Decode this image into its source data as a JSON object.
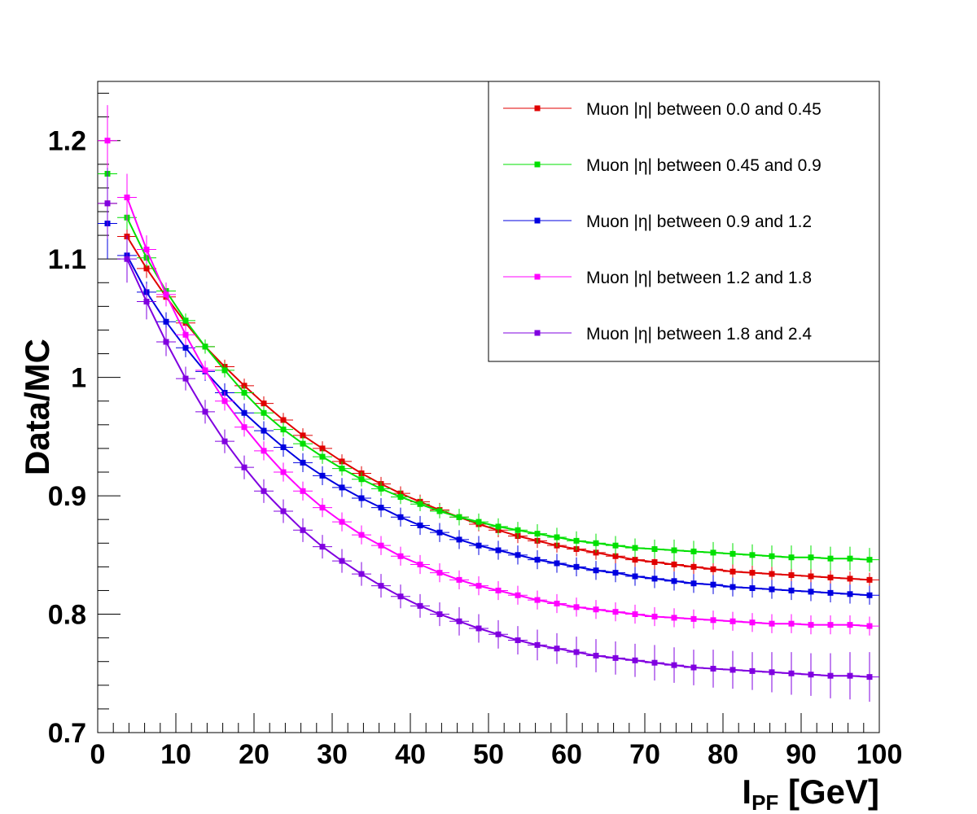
{
  "chart_data": {
    "type": "line",
    "title": "",
    "xlabel_main": "I",
    "xlabel_sub": "PF",
    "xlabel_unit": " [GeV]",
    "ylabel": "Data/MC",
    "xlim": [
      0,
      100
    ],
    "ylim": [
      0.7,
      1.25
    ],
    "x_ticks": [
      "0",
      "10",
      "20",
      "30",
      "40",
      "50",
      "60",
      "70",
      "80",
      "90",
      "100"
    ],
    "y_ticks": [
      "0.7",
      "0.8",
      "0.9",
      "1",
      "1.1",
      "1.2"
    ],
    "y_tick_values": [
      0.7,
      0.8,
      0.9,
      1.0,
      1.1,
      1.2
    ],
    "legend_position": "top-right",
    "x": [
      1.25,
      3.75,
      6.25,
      8.75,
      11.25,
      13.75,
      16.25,
      18.75,
      21.25,
      23.75,
      26.25,
      28.75,
      31.25,
      33.75,
      36.25,
      38.75,
      41.25,
      43.75,
      46.25,
      48.75,
      51.25,
      53.75,
      56.25,
      58.75,
      61.25,
      63.75,
      66.25,
      68.75,
      71.25,
      73.75,
      76.25,
      78.75,
      81.25,
      83.75,
      86.25,
      88.75,
      91.25,
      93.75,
      96.25,
      98.75
    ],
    "series": [
      {
        "name": "Muon |η| between 0.0 and 0.45",
        "color": "#e00000",
        "values": [
          1.147,
          1.119,
          1.092,
          1.068,
          1.046,
          1.026,
          1.009,
          0.993,
          0.978,
          0.964,
          0.951,
          0.94,
          0.929,
          0.919,
          0.91,
          0.902,
          0.895,
          0.888,
          0.882,
          0.876,
          0.871,
          0.866,
          0.862,
          0.858,
          0.855,
          0.852,
          0.849,
          0.846,
          0.844,
          0.842,
          0.84,
          0.838,
          0.836,
          0.835,
          0.834,
          0.833,
          0.832,
          0.831,
          0.83,
          0.829
        ],
        "errors": [
          0.02,
          0.01,
          0.008,
          0.007,
          0.006,
          0.006,
          0.006,
          0.006,
          0.006,
          0.006,
          0.006,
          0.006,
          0.006,
          0.006,
          0.006,
          0.006,
          0.006,
          0.006,
          0.006,
          0.006,
          0.006,
          0.006,
          0.006,
          0.006,
          0.006,
          0.006,
          0.006,
          0.006,
          0.006,
          0.006,
          0.006,
          0.006,
          0.006,
          0.006,
          0.006,
          0.006,
          0.006,
          0.006,
          0.006,
          0.006
        ]
      },
      {
        "name": "Muon |η| between 0.45 and 0.9",
        "color": "#00e000",
        "values": [
          1.172,
          1.135,
          1.101,
          1.073,
          1.048,
          1.026,
          1.006,
          0.987,
          0.97,
          0.956,
          0.944,
          0.933,
          0.923,
          0.914,
          0.906,
          0.899,
          0.893,
          0.887,
          0.882,
          0.878,
          0.874,
          0.871,
          0.868,
          0.865,
          0.862,
          0.86,
          0.858,
          0.856,
          0.855,
          0.854,
          0.853,
          0.852,
          0.851,
          0.85,
          0.849,
          0.848,
          0.848,
          0.847,
          0.847,
          0.846
        ],
        "errors": [
          0.03,
          0.01,
          0.008,
          0.007,
          0.006,
          0.006,
          0.006,
          0.006,
          0.006,
          0.006,
          0.006,
          0.006,
          0.006,
          0.006,
          0.006,
          0.006,
          0.006,
          0.006,
          0.007,
          0.007,
          0.007,
          0.007,
          0.008,
          0.008,
          0.008,
          0.008,
          0.008,
          0.008,
          0.008,
          0.009,
          0.009,
          0.009,
          0.009,
          0.009,
          0.009,
          0.01,
          0.01,
          0.01,
          0.01,
          0.01
        ]
      },
      {
        "name": "Muon |η| between 0.9 and 1.2",
        "color": "#0000e0",
        "values": [
          1.13,
          1.103,
          1.072,
          1.047,
          1.025,
          1.005,
          0.987,
          0.97,
          0.955,
          0.941,
          0.928,
          0.917,
          0.907,
          0.898,
          0.89,
          0.882,
          0.875,
          0.869,
          0.863,
          0.858,
          0.854,
          0.85,
          0.846,
          0.843,
          0.84,
          0.837,
          0.835,
          0.832,
          0.83,
          0.828,
          0.826,
          0.825,
          0.823,
          0.822,
          0.821,
          0.82,
          0.819,
          0.818,
          0.817,
          0.816
        ],
        "errors": [
          0.03,
          0.012,
          0.009,
          0.008,
          0.008,
          0.008,
          0.008,
          0.008,
          0.008,
          0.008,
          0.008,
          0.008,
          0.008,
          0.008,
          0.008,
          0.008,
          0.008,
          0.008,
          0.008,
          0.008,
          0.008,
          0.008,
          0.008,
          0.008,
          0.008,
          0.008,
          0.008,
          0.008,
          0.008,
          0.008,
          0.008,
          0.008,
          0.008,
          0.008,
          0.008,
          0.008,
          0.008,
          0.008,
          0.008,
          0.008
        ]
      },
      {
        "name": "Muon |η| between 1.2 and 1.8",
        "color": "#ff00ff",
        "values": [
          1.2,
          1.152,
          1.108,
          1.07,
          1.036,
          1.006,
          0.98,
          0.958,
          0.938,
          0.92,
          0.904,
          0.89,
          0.878,
          0.867,
          0.858,
          0.849,
          0.842,
          0.835,
          0.829,
          0.824,
          0.82,
          0.816,
          0.812,
          0.809,
          0.806,
          0.804,
          0.802,
          0.8,
          0.798,
          0.797,
          0.796,
          0.795,
          0.794,
          0.793,
          0.792,
          0.792,
          0.791,
          0.791,
          0.791,
          0.79
        ],
        "errors": [
          0.03,
          0.02,
          0.012,
          0.01,
          0.009,
          0.008,
          0.008,
          0.008,
          0.008,
          0.008,
          0.008,
          0.008,
          0.008,
          0.008,
          0.008,
          0.008,
          0.008,
          0.008,
          0.008,
          0.008,
          0.008,
          0.008,
          0.008,
          0.008,
          0.008,
          0.008,
          0.008,
          0.008,
          0.008,
          0.008,
          0.008,
          0.008,
          0.008,
          0.008,
          0.008,
          0.008,
          0.008,
          0.008,
          0.008,
          0.008
        ]
      },
      {
        "name": "Muon |η| between 1.8 and 2.4",
        "color": "#8000e0",
        "values": [
          1.147,
          1.1,
          1.064,
          1.03,
          0.999,
          0.971,
          0.946,
          0.924,
          0.904,
          0.887,
          0.871,
          0.857,
          0.845,
          0.834,
          0.824,
          0.815,
          0.807,
          0.8,
          0.794,
          0.788,
          0.783,
          0.778,
          0.774,
          0.771,
          0.768,
          0.765,
          0.763,
          0.761,
          0.759,
          0.757,
          0.755,
          0.754,
          0.753,
          0.752,
          0.751,
          0.75,
          0.749,
          0.748,
          0.748,
          0.747
        ],
        "errors": [
          0.03,
          0.02,
          0.015,
          0.012,
          0.01,
          0.01,
          0.01,
          0.01,
          0.01,
          0.01,
          0.01,
          0.01,
          0.01,
          0.01,
          0.01,
          0.01,
          0.01,
          0.01,
          0.012,
          0.012,
          0.012,
          0.012,
          0.013,
          0.013,
          0.013,
          0.014,
          0.014,
          0.014,
          0.015,
          0.015,
          0.015,
          0.016,
          0.016,
          0.016,
          0.017,
          0.018,
          0.018,
          0.019,
          0.02,
          0.021
        ]
      }
    ]
  }
}
